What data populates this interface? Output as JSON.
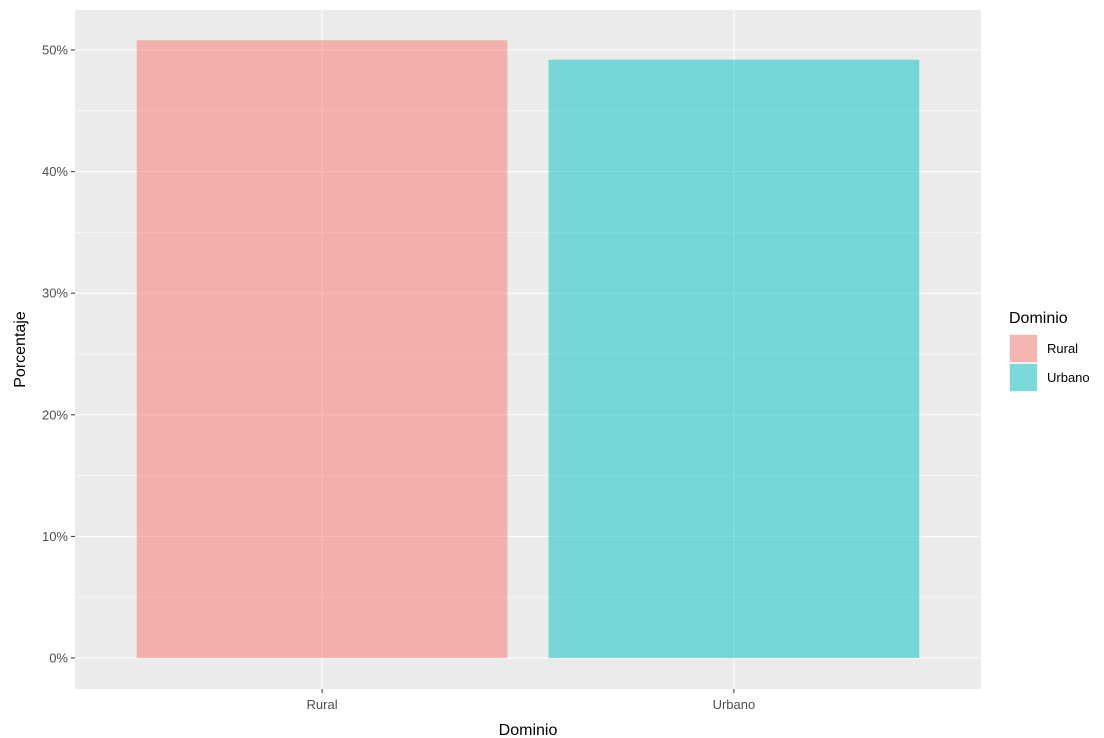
{
  "chart_data": {
    "type": "bar",
    "categories": [
      "Rural",
      "Urbano"
    ],
    "values": [
      50.8,
      49.2
    ],
    "value_format": "percent",
    "xlabel": "Dominio",
    "ylabel": "Porcentaje",
    "ylim": [
      0,
      52.5
    ],
    "yticks": [
      0,
      10,
      20,
      30,
      40,
      50
    ],
    "ytick_labels": [
      "0%",
      "10%",
      "20%",
      "30%",
      "40%",
      "50%"
    ],
    "grid": true,
    "legend": {
      "title": "Dominio",
      "position": "right",
      "entries": [
        {
          "label": "Rural",
          "color": "#F8766D"
        },
        {
          "label": "Urbano",
          "color": "#00BFC4"
        }
      ]
    },
    "colors": [
      "#F8766D",
      "#00BFC4"
    ],
    "panel_background": "#EBEBEB"
  }
}
